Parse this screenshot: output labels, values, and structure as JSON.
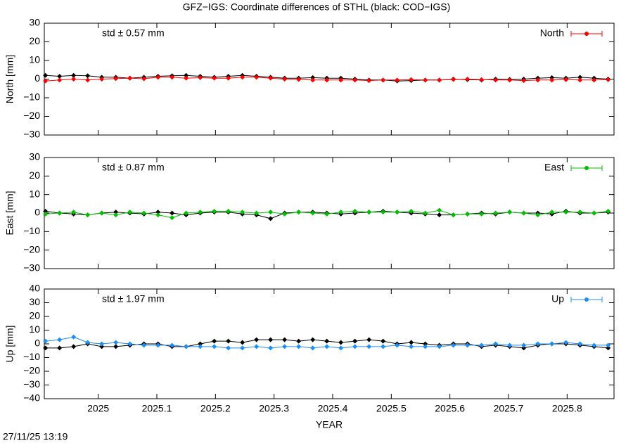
{
  "title": "GFZ−IGS: Coordinate differences of STHL (black: COD−IGS)",
  "footer": "27/11/25 13:19",
  "chart_data": [
    {
      "type": "scatter",
      "ylabel": "North [mm]",
      "annotation": "std ± 0.57 mm",
      "xlim": [
        2024.908,
        2025.88
      ],
      "xticks": [
        2025,
        2025.1,
        2025.2,
        2025.3,
        2025.4,
        2025.5,
        2025.6,
        2025.7,
        2025.8
      ],
      "ylim": [
        -30,
        30
      ],
      "yticks": [
        {
          "value": -30,
          "label": "−30"
        },
        {
          "value": -20,
          "label": "−20"
        },
        {
          "value": -10,
          "label": "−10"
        },
        0,
        10,
        20,
        30
      ],
      "legend": "upper right",
      "x": [
        2024.91,
        2024.934,
        2024.958,
        2024.982,
        2025.006,
        2025.03,
        2025.054,
        2025.078,
        2025.102,
        2025.126,
        2025.15,
        2025.174,
        2025.198,
        2025.222,
        2025.246,
        2025.27,
        2025.294,
        2025.318,
        2025.342,
        2025.366,
        2025.39,
        2025.414,
        2025.438,
        2025.462,
        2025.486,
        2025.51,
        2025.534,
        2025.558,
        2025.582,
        2025.606,
        2025.63,
        2025.654,
        2025.678,
        2025.702,
        2025.726,
        2025.75,
        2025.774,
        2025.798,
        2025.822,
        2025.846,
        2025.87
      ],
      "series": [
        {
          "color": "#000000",
          "values": [
            2,
            1.5,
            2,
            1.8,
            1,
            1,
            0.5,
            1,
            1.5,
            1.8,
            2,
            1.5,
            1,
            1.5,
            2,
            1.5,
            1,
            0.5,
            0.5,
            0.8,
            0.5,
            0.5,
            0,
            -0.5,
            -0.5,
            -1,
            -0.8,
            -0.5,
            -0.5,
            0,
            -0.3,
            -0.5,
            0,
            -0.2,
            0,
            0.5,
            0.8,
            0.5,
            1,
            0.5,
            0
          ]
        },
        {
          "name": "North",
          "color": "#ff0000",
          "values": [
            -1,
            -0.5,
            0,
            -0.5,
            0,
            0.3,
            0.5,
            0.2,
            1,
            1,
            0.5,
            0.8,
            0.5,
            0.5,
            1,
            1,
            0.5,
            0,
            -0.2,
            -0.5,
            -0.5,
            -0.5,
            -0.5,
            -0.8,
            -0.5,
            -0.5,
            -0.3,
            -0.5,
            -0.5,
            -0.2,
            0,
            -0.3,
            -0.5,
            -0.5,
            -0.8,
            -0.5,
            -0.5,
            -0.3,
            -0.5,
            -0.5,
            -0.3
          ]
        }
      ]
    },
    {
      "type": "scatter",
      "ylabel": "East [mm]",
      "annotation": "std ± 0.87 mm",
      "xlim": [
        2024.908,
        2025.88
      ],
      "xticks": [
        2025,
        2025.1,
        2025.2,
        2025.3,
        2025.4,
        2025.5,
        2025.6,
        2025.7,
        2025.8
      ],
      "ylim": [
        -30,
        30
      ],
      "yticks": [
        {
          "value": -30,
          "label": "−30"
        },
        {
          "value": -20,
          "label": "−20"
        },
        {
          "value": -10,
          "label": "−10"
        },
        0,
        10,
        20,
        30
      ],
      "legend": "upper right",
      "x": [
        2024.91,
        2024.934,
        2024.958,
        2024.982,
        2025.006,
        2025.03,
        2025.054,
        2025.078,
        2025.102,
        2025.126,
        2025.15,
        2025.174,
        2025.198,
        2025.222,
        2025.246,
        2025.27,
        2025.294,
        2025.318,
        2025.342,
        2025.366,
        2025.39,
        2025.414,
        2025.438,
        2025.462,
        2025.486,
        2025.51,
        2025.534,
        2025.558,
        2025.582,
        2025.606,
        2025.63,
        2025.654,
        2025.678,
        2025.702,
        2025.726,
        2025.75,
        2025.774,
        2025.798,
        2025.822,
        2025.846,
        2025.87
      ],
      "series": [
        {
          "color": "#000000",
          "values": [
            1,
            0,
            -0.5,
            -1,
            0,
            0.5,
            0,
            -0.5,
            0.5,
            0,
            -1,
            0,
            0.5,
            0.5,
            -0.5,
            -1,
            -3,
            0,
            0.5,
            0.5,
            0,
            -0.5,
            0,
            0.5,
            1,
            0.5,
            0,
            -0.5,
            -1,
            -1,
            -0.5,
            0,
            -0.5,
            0.5,
            0,
            0,
            -0.5,
            1,
            0,
            0,
            0.5
          ]
        },
        {
          "name": "East",
          "color": "#00c000",
          "values": [
            -0.5,
            0,
            0.5,
            -1,
            0,
            -1,
            0.5,
            0,
            -1,
            -2.5,
            0,
            0.5,
            1,
            1,
            0.5,
            0,
            0.5,
            -0.5,
            0.5,
            0,
            -0.5,
            0.5,
            1,
            0.5,
            0.5,
            0.5,
            1,
            0,
            1.5,
            -1,
            -0.5,
            -0.5,
            0,
            0.5,
            0,
            -1,
            0.5,
            0.5,
            0.5,
            0,
            1
          ]
        }
      ]
    },
    {
      "type": "scatter",
      "ylabel": "Up [mm]",
      "xlabel": "YEAR",
      "annotation": "std ± 1.97 mm",
      "xlim": [
        2024.908,
        2025.88
      ],
      "xticks": [
        2025,
        2025.1,
        2025.2,
        2025.3,
        2025.4,
        2025.5,
        2025.6,
        2025.7,
        2025.8
      ],
      "ylim": [
        -40,
        40
      ],
      "yticks": [
        {
          "value": -40,
          "label": "−40"
        },
        {
          "value": -30,
          "label": "−30"
        },
        {
          "value": -20,
          "label": "−20"
        },
        {
          "value": -10,
          "label": "−10"
        },
        0,
        10,
        20,
        30,
        40
      ],
      "legend": "upper right",
      "x": [
        2024.91,
        2024.934,
        2024.958,
        2024.982,
        2025.006,
        2025.03,
        2025.054,
        2025.078,
        2025.102,
        2025.126,
        2025.15,
        2025.174,
        2025.198,
        2025.222,
        2025.246,
        2025.27,
        2025.294,
        2025.318,
        2025.342,
        2025.366,
        2025.39,
        2025.414,
        2025.438,
        2025.462,
        2025.486,
        2025.51,
        2025.534,
        2025.558,
        2025.582,
        2025.606,
        2025.63,
        2025.654,
        2025.678,
        2025.702,
        2025.726,
        2025.75,
        2025.774,
        2025.798,
        2025.822,
        2025.846,
        2025.87
      ],
      "series": [
        {
          "color": "#000000",
          "values": [
            -3,
            -3,
            -2,
            0,
            -2,
            -2,
            -1,
            0,
            0,
            -2,
            -2,
            0,
            2,
            2,
            1,
            3,
            3,
            3,
            2,
            3,
            2,
            1,
            2,
            3,
            2,
            0,
            1,
            0,
            -1,
            0,
            0,
            -2,
            -1,
            -2,
            -3,
            -1,
            0,
            0,
            -1,
            -2,
            -3
          ]
        },
        {
          "name": "Up",
          "color": "#1e8ff0",
          "values": [
            2,
            3,
            5,
            1,
            0,
            1,
            0,
            -1,
            -1,
            -1,
            -2,
            -2,
            -2,
            -3,
            -3,
            -2,
            -3,
            -2,
            -2,
            -3,
            -2,
            -3,
            -2,
            -2,
            -2,
            -1,
            -2,
            -2,
            -2,
            -1,
            -1,
            -1,
            0,
            -1,
            -1,
            0,
            0,
            1,
            0,
            -1,
            -1
          ]
        }
      ]
    }
  ]
}
